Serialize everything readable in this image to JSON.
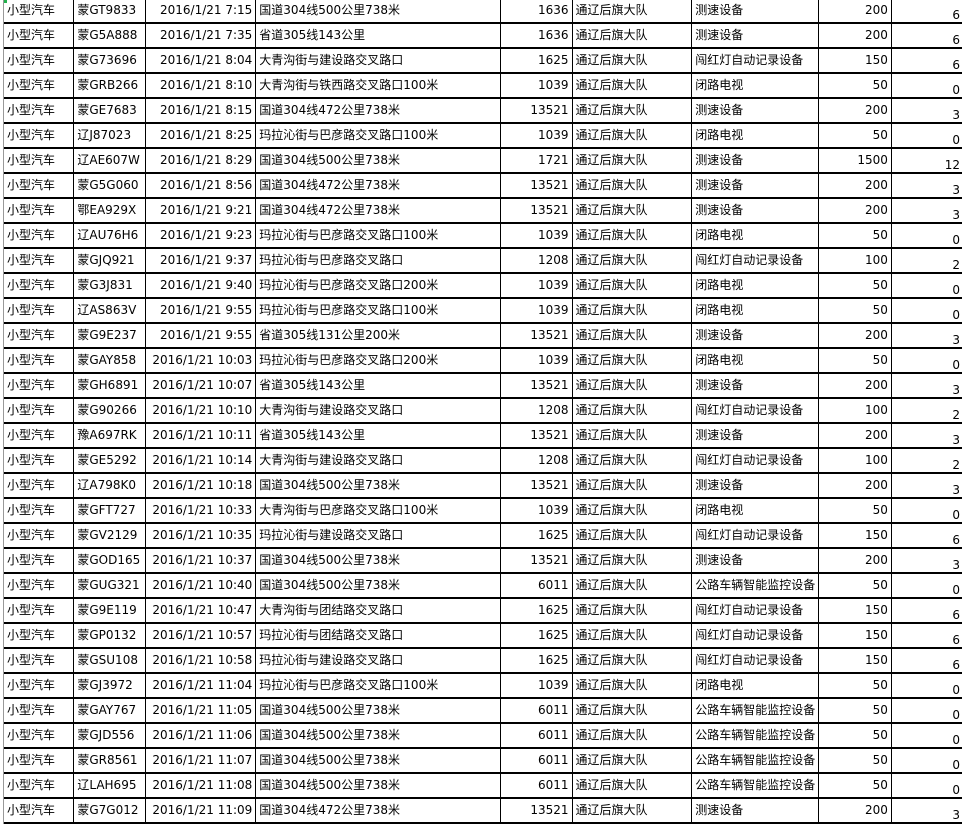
{
  "sheet": {
    "rows": [
      [
        "小型汽车",
        "蒙GT9833",
        "2016/1/21  7:15",
        "国道304线500公里738米",
        "1636",
        "通辽后旗大队",
        "测速设备",
        "200",
        "6"
      ],
      [
        "小型汽车",
        "蒙G5A888",
        "2016/1/21  7:35",
        "省道305线143公里",
        "1636",
        "通辽后旗大队",
        "测速设备",
        "200",
        "6"
      ],
      [
        "小型汽车",
        "蒙G73696",
        "2016/1/21  8:04",
        "大青沟街与建设路交叉路口",
        "1625",
        "通辽后旗大队",
        "闯红灯自动记录设备",
        "150",
        "6"
      ],
      [
        "小型汽车",
        "蒙GRB266",
        "2016/1/21  8:10",
        "大青沟街与铁西路交叉路口100米",
        "1039",
        "通辽后旗大队",
        "闭路电视",
        "50",
        "0"
      ],
      [
        "小型汽车",
        "蒙GE7683",
        "2016/1/21  8:15",
        "国道304线472公里738米",
        "13521",
        "通辽后旗大队",
        "测速设备",
        "200",
        "3"
      ],
      [
        "小型汽车",
        "辽J87023",
        "2016/1/21  8:25",
        "玛拉沁街与巴彦路交叉路口100米",
        "1039",
        "通辽后旗大队",
        "闭路电视",
        "50",
        "0"
      ],
      [
        "小型汽车",
        "辽AE607W",
        "2016/1/21  8:29",
        "国道304线500公里738米",
        "1721",
        "通辽后旗大队",
        "测速设备",
        "1500",
        "12"
      ],
      [
        "小型汽车",
        "蒙G5G060",
        "2016/1/21  8:56",
        "国道304线472公里738米",
        "13521",
        "通辽后旗大队",
        "测速设备",
        "200",
        "3"
      ],
      [
        "小型汽车",
        "鄂EA929X",
        "2016/1/21  9:21",
        "国道304线472公里738米",
        "13521",
        "通辽后旗大队",
        "测速设备",
        "200",
        "3"
      ],
      [
        "小型汽车",
        "辽AU76H6",
        "2016/1/21  9:23",
        "玛拉沁街与巴彦路交叉路口100米",
        "1039",
        "通辽后旗大队",
        "闭路电视",
        "50",
        "0"
      ],
      [
        "小型汽车",
        "蒙GJQ921",
        "2016/1/21  9:37",
        "玛拉沁街与巴彦路交叉路口",
        "1208",
        "通辽后旗大队",
        "闯红灯自动记录设备",
        "100",
        "2"
      ],
      [
        "小型汽车",
        "蒙G3J831",
        "2016/1/21  9:40",
        "玛拉沁街与巴彦路交叉路口200米",
        "1039",
        "通辽后旗大队",
        "闭路电视",
        "50",
        "0"
      ],
      [
        "小型汽车",
        "辽AS863V",
        "2016/1/21  9:55",
        "玛拉沁街与巴彦路交叉路口100米",
        "1039",
        "通辽后旗大队",
        "闭路电视",
        "50",
        "0"
      ],
      [
        "小型汽车",
        "蒙G9E237",
        "2016/1/21  9:55",
        "省道305线131公里200米",
        "13521",
        "通辽后旗大队",
        "测速设备",
        "200",
        "3"
      ],
      [
        "小型汽车",
        "蒙GAY858",
        "2016/1/21 10:03",
        "玛拉沁街与巴彦路交叉路口200米",
        "1039",
        "通辽后旗大队",
        "闭路电视",
        "50",
        "0"
      ],
      [
        "小型汽车",
        "蒙GH6891",
        "2016/1/21 10:07",
        "省道305线143公里",
        "13521",
        "通辽后旗大队",
        "测速设备",
        "200",
        "3"
      ],
      [
        "小型汽车",
        "蒙G90266",
        "2016/1/21 10:10",
        "大青沟街与建设路交叉路口",
        "1208",
        "通辽后旗大队",
        "闯红灯自动记录设备",
        "100",
        "2"
      ],
      [
        "小型汽车",
        "豫A697RK",
        "2016/1/21 10:11",
        "省道305线143公里",
        "13521",
        "通辽后旗大队",
        "测速设备",
        "200",
        "3"
      ],
      [
        "小型汽车",
        "蒙GE5292",
        "2016/1/21 10:14",
        "大青沟街与建设路交叉路口",
        "1208",
        "通辽后旗大队",
        "闯红灯自动记录设备",
        "100",
        "2"
      ],
      [
        "小型汽车",
        "辽A798K0",
        "2016/1/21 10:18",
        "国道304线500公里738米",
        "13521",
        "通辽后旗大队",
        "测速设备",
        "200",
        "3"
      ],
      [
        "小型汽车",
        "蒙GFT727",
        "2016/1/21 10:33",
        "大青沟街与巴彦路交叉路口100米",
        "1039",
        "通辽后旗大队",
        "闭路电视",
        "50",
        "0"
      ],
      [
        "小型汽车",
        "蒙GV2129",
        "2016/1/21 10:35",
        "玛拉沁街与建设路交叉路口",
        "1625",
        "通辽后旗大队",
        "闯红灯自动记录设备",
        "150",
        "6"
      ],
      [
        "小型汽车",
        "蒙GOD165",
        "2016/1/21 10:37",
        "国道304线500公里738米",
        "13521",
        "通辽后旗大队",
        "测速设备",
        "200",
        "3"
      ],
      [
        "小型汽车",
        "蒙GUG321",
        "2016/1/21 10:40",
        "国道304线500公里738米",
        "6011",
        "通辽后旗大队",
        "公路车辆智能监控设备",
        "50",
        "0"
      ],
      [
        "小型汽车",
        "蒙G9E119",
        "2016/1/21 10:47",
        "大青沟街与团结路交叉路口",
        "1625",
        "通辽后旗大队",
        "闯红灯自动记录设备",
        "150",
        "6"
      ],
      [
        "小型汽车",
        "蒙GP0132",
        "2016/1/21 10:57",
        "玛拉沁街与团结路交叉路口",
        "1625",
        "通辽后旗大队",
        "闯红灯自动记录设备",
        "150",
        "6"
      ],
      [
        "小型汽车",
        "蒙GSU108",
        "2016/1/21 10:58",
        "玛拉沁街与建设路交叉路口",
        "1625",
        "通辽后旗大队",
        "闯红灯自动记录设备",
        "150",
        "6"
      ],
      [
        "小型汽车",
        "蒙GJ3972",
        "2016/1/21 11:04",
        "玛拉沁街与巴彦路交叉路口100米",
        "1039",
        "通辽后旗大队",
        "闭路电视",
        "50",
        "0"
      ],
      [
        "小型汽车",
        "蒙GAY767",
        "2016/1/21 11:05",
        "国道304线500公里738米",
        "6011",
        "通辽后旗大队",
        "公路车辆智能监控设备",
        "50",
        "0"
      ],
      [
        "小型汽车",
        "蒙GJD556",
        "2016/1/21 11:06",
        "国道304线500公里738米",
        "6011",
        "通辽后旗大队",
        "公路车辆智能监控设备",
        "50",
        "0"
      ],
      [
        "小型汽车",
        "蒙GR8561",
        "2016/1/21 11:07",
        "国道304线500公里738米",
        "6011",
        "通辽后旗大队",
        "公路车辆智能监控设备",
        "50",
        "0"
      ],
      [
        "小型汽车",
        "辽LAH695",
        "2016/1/21 11:08",
        "国道304线500公里738米",
        "6011",
        "通辽后旗大队",
        "公路车辆智能监控设备",
        "50",
        "0"
      ],
      [
        "小型汽车",
        "蒙G7G012",
        "2016/1/21 11:09",
        "国道304线472公里738米",
        "13521",
        "通辽后旗大队",
        "测速设备",
        "200",
        "3"
      ]
    ]
  }
}
